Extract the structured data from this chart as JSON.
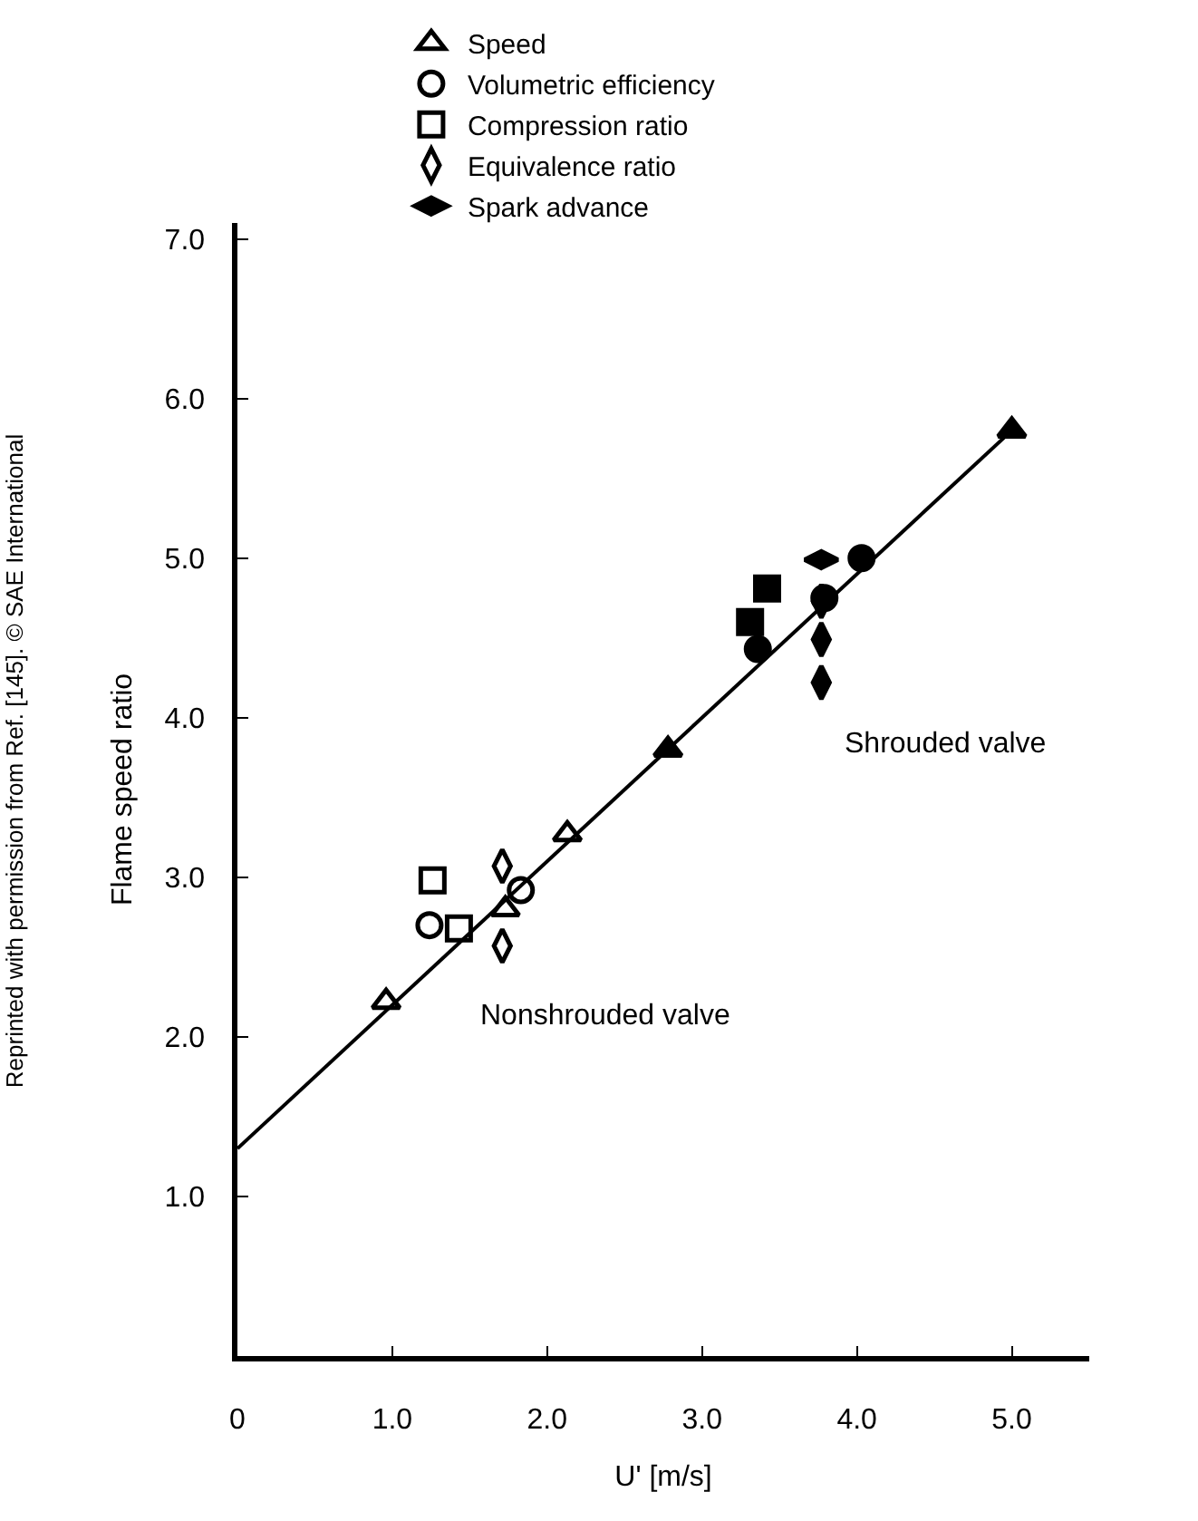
{
  "chart_data": {
    "type": "scatter",
    "xlabel": "U' [m/s]",
    "ylabel": "Flame speed ratio",
    "xlim": [
      0,
      5.5
    ],
    "ylim": [
      0,
      7.1
    ],
    "xticks": [
      0,
      {
        "value": 1,
        "label": "1.0"
      },
      {
        "value": 2,
        "label": "2.0"
      },
      {
        "value": 3,
        "label": "3.0"
      },
      {
        "value": 4,
        "label": "4.0"
      },
      {
        "value": 5,
        "label": "5.0"
      }
    ],
    "yticks": [
      {
        "value": 1,
        "label": "1.0"
      },
      {
        "value": 2,
        "label": "2.0"
      },
      {
        "value": 3,
        "label": "3.0"
      },
      {
        "value": 4,
        "label": "4.0"
      },
      {
        "value": 5,
        "label": "5.0"
      },
      {
        "value": 6,
        "label": "6.0"
      },
      {
        "value": 7,
        "label": "7.0"
      }
    ],
    "legend": "top",
    "series": [
      {
        "name": "Speed",
        "marker": "triangle",
        "color": "#000000",
        "x": [
          0.96,
          1.73,
          2.13,
          2.78,
          5.0
        ],
        "values": [
          2.22,
          2.8,
          3.27,
          3.8,
          5.8
        ],
        "colors": [
          "#ffffff",
          "#ffffff",
          "#ffffff",
          "#000000",
          "#000000"
        ]
      },
      {
        "name": "Volumetric efficiency",
        "marker": "circle",
        "color": "#000000",
        "x": [
          1.24,
          1.83,
          3.36,
          3.79,
          4.03
        ],
        "values": [
          2.7,
          2.92,
          4.43,
          4.75,
          5.0
        ],
        "colors": [
          "#ffffff",
          "#ffffff",
          "#000000",
          "#000000",
          "#000000"
        ]
      },
      {
        "name": "Compression ratio",
        "marker": "square",
        "color": "#000000",
        "x": [
          1.26,
          1.43,
          3.31,
          3.42
        ],
        "values": [
          2.98,
          2.68,
          4.6,
          4.81
        ],
        "colors": [
          "#ffffff",
          "#ffffff",
          "#000000",
          "#000000"
        ]
      },
      {
        "name": "Equivalence ratio",
        "marker": "diamond",
        "color": "#000000",
        "x": [
          1.71,
          1.71,
          3.77,
          3.77,
          3.77
        ],
        "values": [
          3.07,
          2.57,
          4.73,
          4.49,
          4.22
        ],
        "colors": [
          "#ffffff",
          "#ffffff",
          "#000000",
          "#000000",
          "#000000"
        ]
      },
      {
        "name": "Spark advance",
        "marker": "diamond",
        "color": "#000000",
        "x": [
          3.77
        ],
        "values": [
          4.99
        ],
        "colors": [
          "#000000"
        ]
      },
      {
        "type": "line",
        "line_style": "solid",
        "marker": "none",
        "color": "#000000",
        "x": [
          0,
          5.0
        ],
        "values": [
          1.3,
          5.8
        ]
      }
    ],
    "annotations": [
      "Nonshrouded valve",
      "Shrouded valve",
      "Reprinted with permission from Ref. [145]. © SAE International"
    ]
  }
}
